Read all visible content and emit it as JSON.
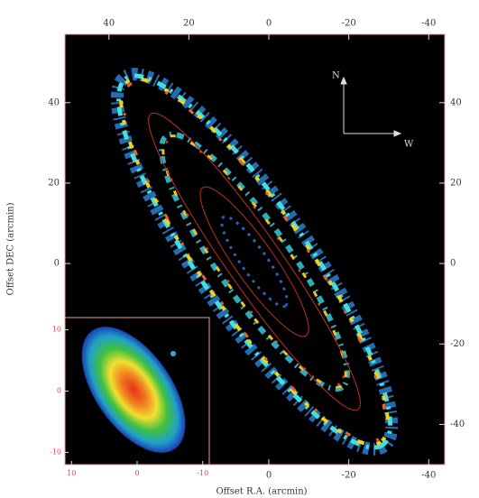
{
  "figure": {
    "x_label": "Offset R.A. (arcmin)",
    "y_label": "Offset DEC (arcmin)",
    "xlim": [
      51,
      -44
    ],
    "xticks": [
      40,
      20,
      0,
      -20,
      -40
    ],
    "ylim": [
      -50,
      57
    ],
    "yticks": [
      40,
      20,
      0,
      -20,
      -40
    ],
    "compass": {
      "north": "N",
      "west": "W"
    },
    "inset": {
      "xlim": [
        11,
        -11
      ],
      "xticks": [
        10,
        0,
        -10
      ],
      "ylim": [
        -12,
        12
      ],
      "yticks": [
        10,
        0,
        -10
      ]
    }
  }
}
